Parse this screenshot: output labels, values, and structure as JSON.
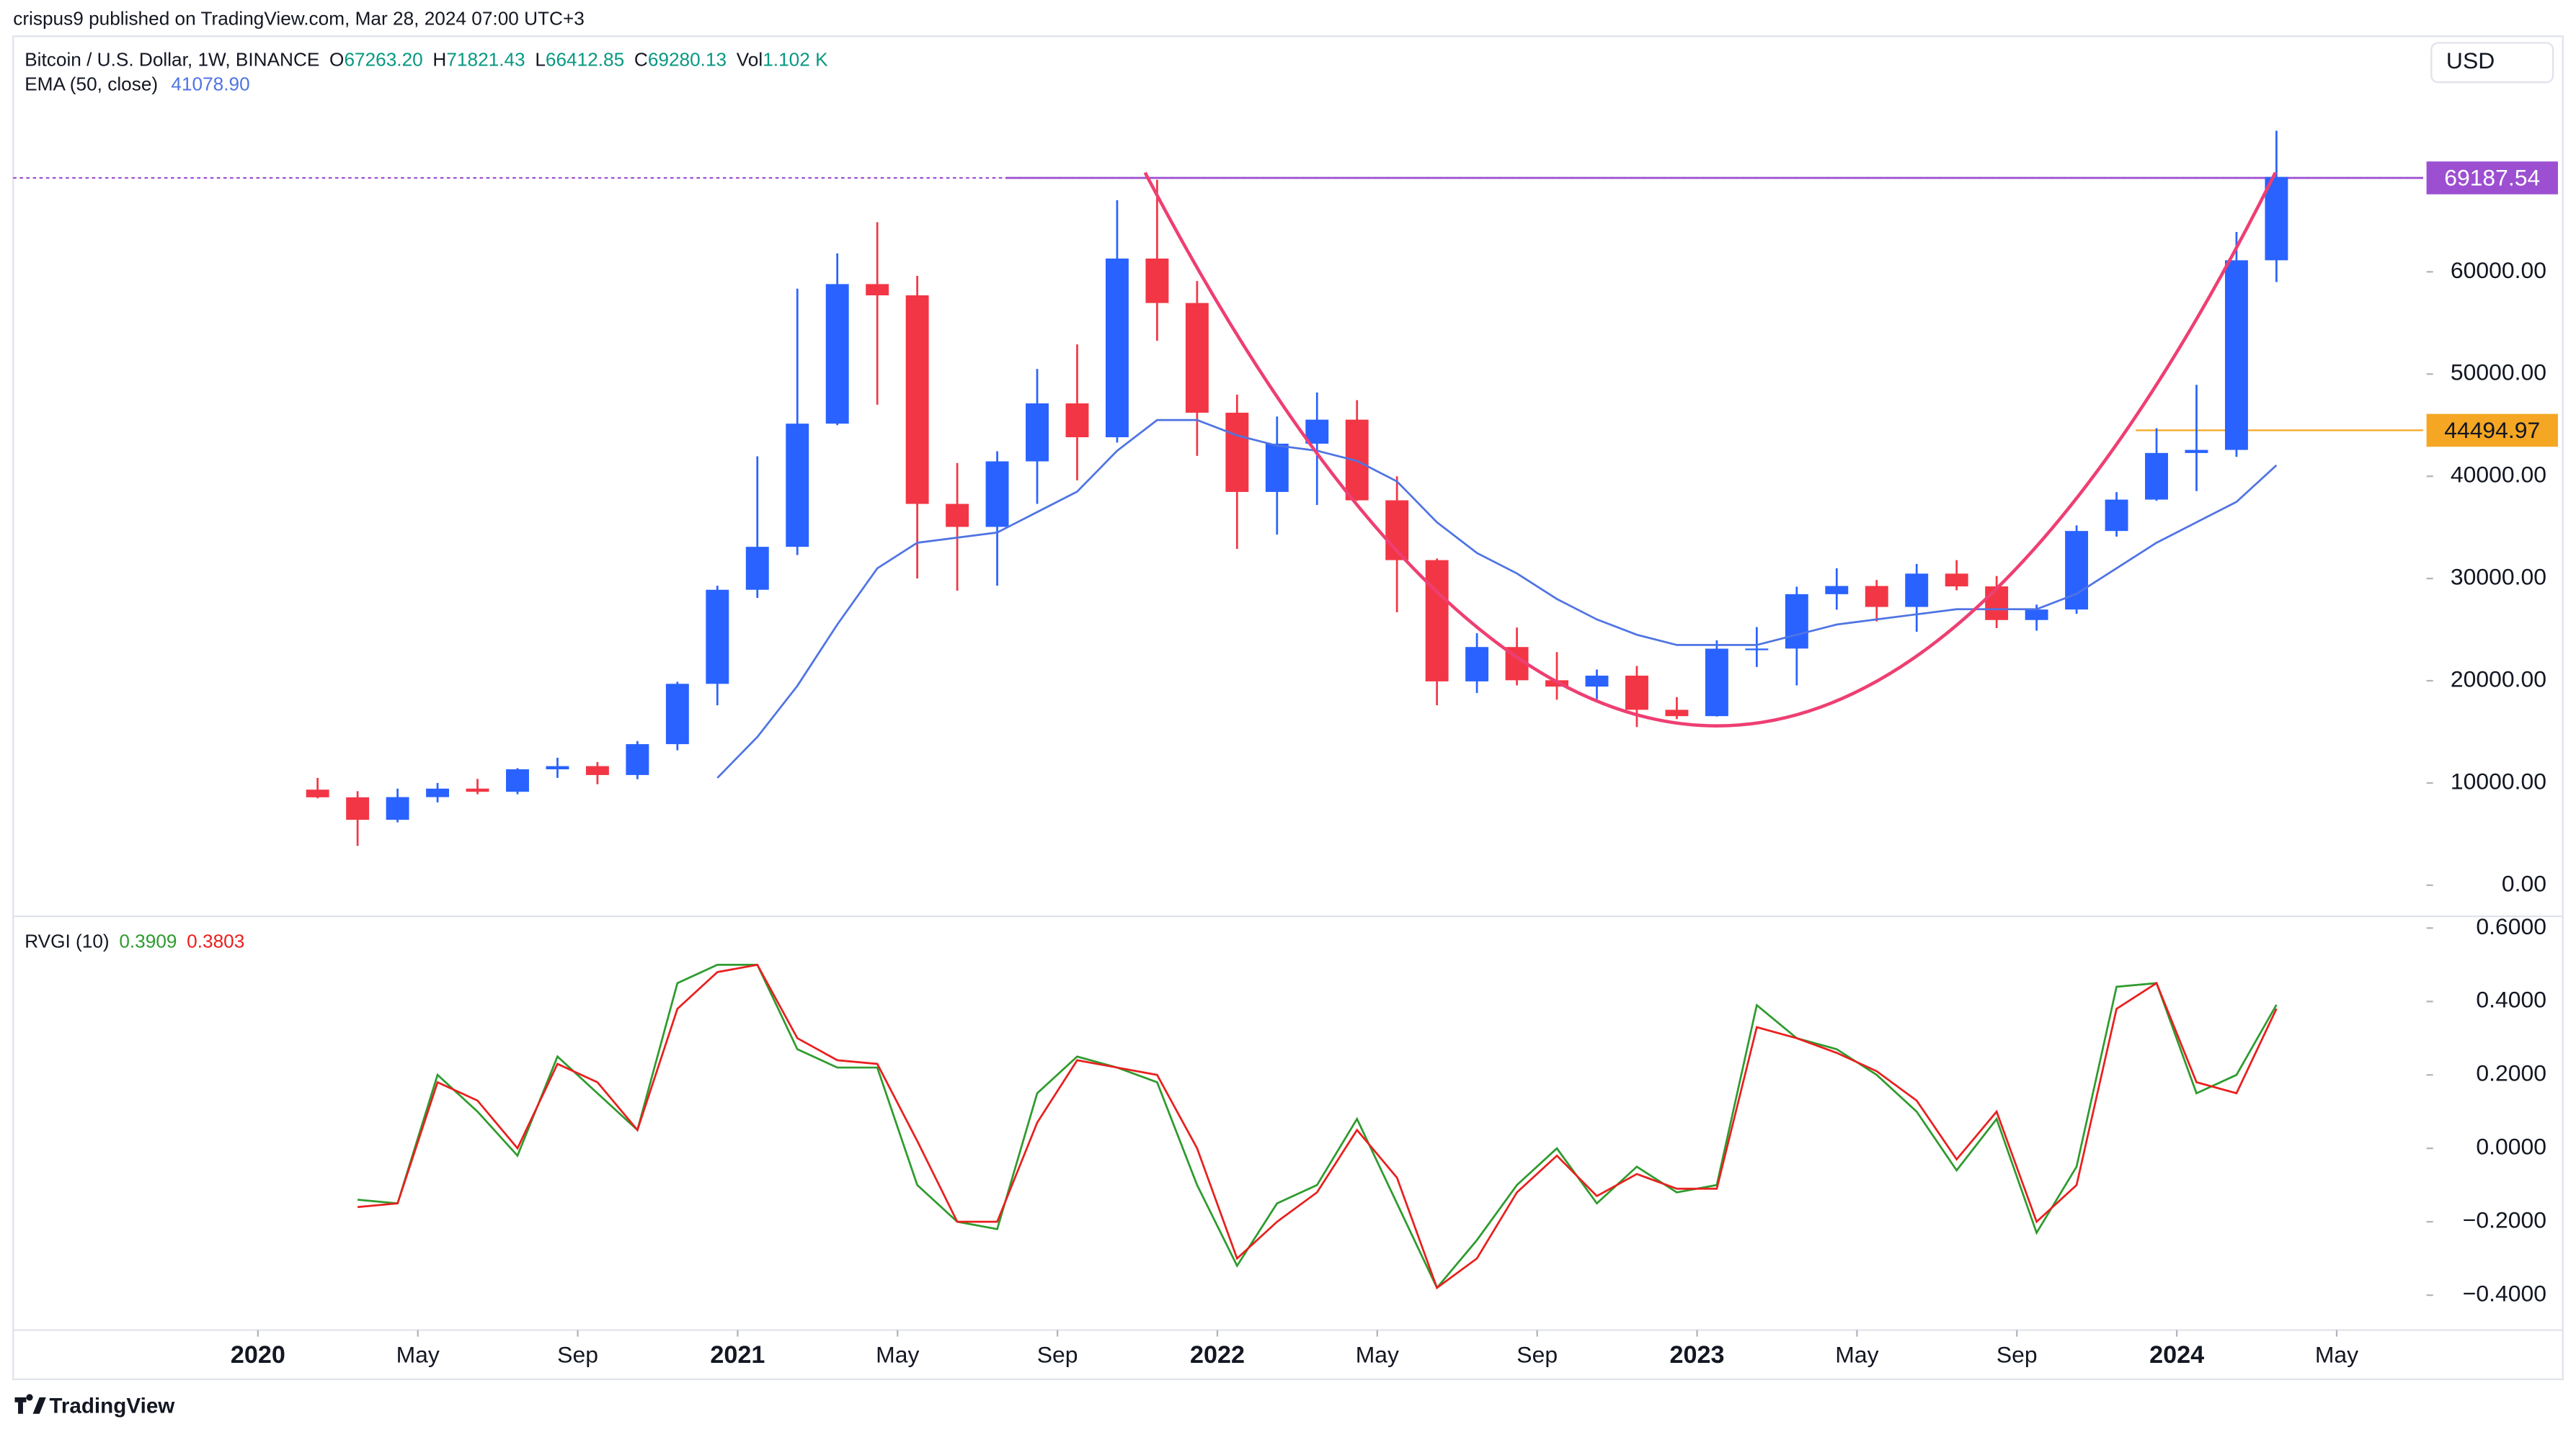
{
  "header": {
    "publisher": "crispus9 published on TradingView.com, Mar 28, 2024 07:00 UTC+3"
  },
  "footer": {
    "brand": "TradingView"
  },
  "chart_data": [
    {
      "type": "candlestick",
      "title": "Bitcoin / U.S. Dollar, 1W, BINANCE",
      "currency": "USD",
      "legend_values": [
        {
          "label": "O",
          "value": "67263.20"
        },
        {
          "label": "H",
          "value": "71821.43"
        },
        {
          "label": "L",
          "value": "66412.85"
        },
        {
          "label": "C",
          "value": "69280.13"
        },
        {
          "label": "Vol",
          "value": "1.102 K"
        }
      ],
      "up_color": "#2962ff",
      "down_color": "#f23645",
      "x": [
        "2020-02",
        "2020-03",
        "2020-04",
        "2020-05",
        "2020-06",
        "2020-07",
        "2020-08",
        "2020-09",
        "2020-10",
        "2020-11",
        "2020-12",
        "2021-01",
        "2021-02",
        "2021-03",
        "2021-04",
        "2021-05",
        "2021-06",
        "2021-07",
        "2021-08",
        "2021-09",
        "2021-10",
        "2021-11",
        "2021-12",
        "2022-01",
        "2022-02",
        "2022-03",
        "2022-04",
        "2022-05",
        "2022-06",
        "2022-07",
        "2022-08",
        "2022-09",
        "2022-10",
        "2022-11",
        "2022-12",
        "2023-01",
        "2023-02",
        "2023-03",
        "2023-04",
        "2023-05",
        "2023-06",
        "2023-07",
        "2023-08",
        "2023-09",
        "2023-10",
        "2023-11",
        "2023-12",
        "2024-01",
        "2024-02",
        "2024-03"
      ],
      "open": [
        9350,
        8600,
        6400,
        8620,
        9450,
        9140,
        11340,
        11650,
        10780,
        13800,
        19700,
        28900,
        33100,
        45150,
        58800,
        57700,
        37300,
        35050,
        41460,
        47130,
        43820,
        61300,
        56950,
        46220,
        38470,
        43190,
        45540,
        37650,
        31800,
        19940,
        23300,
        20050,
        19430,
        20500,
        17160,
        16540,
        23140,
        23150,
        28470,
        29270,
        27220,
        30480,
        29230,
        25940,
        26970,
        34650,
        37720,
        42280,
        42580,
        61130
      ],
      "high": [
        10500,
        9200,
        9450,
        10000,
        10400,
        11450,
        12470,
        12050,
        14100,
        19900,
        29300,
        41950,
        58350,
        61800,
        64850,
        59600,
        41300,
        42450,
        50500,
        52900,
        67000,
        69000,
        59100,
        47990,
        45850,
        48200,
        47450,
        40000,
        31960,
        24650,
        25200,
        22800,
        21100,
        21450,
        18400,
        23950,
        25250,
        29200,
        31000,
        29850,
        31430,
        31800,
        30250,
        27450,
        35200,
        38450,
        44700,
        48950,
        63900,
        73800
      ],
      "low": [
        8500,
        3850,
        6150,
        8100,
        8900,
        8900,
        10500,
        9880,
        10370,
        13200,
        17600,
        28100,
        32300,
        45000,
        47000,
        30000,
        28800,
        29300,
        37300,
        39600,
        43300,
        53250,
        42000,
        32900,
        34300,
        37200,
        37600,
        26700,
        17600,
        18800,
        19550,
        18150,
        18200,
        15480,
        16250,
        16500,
        21350,
        19550,
        26950,
        25800,
        24800,
        28850,
        25150,
        24900,
        26550,
        34100,
        37600,
        38550,
        41900,
        59000
      ],
      "close": [
        8600,
        6400,
        8620,
        9450,
        9140,
        11340,
        11650,
        10780,
        13800,
        19700,
        28900,
        33100,
        45150,
        58800,
        57700,
        37300,
        35050,
        41460,
        47130,
        43820,
        61300,
        56950,
        46220,
        38470,
        43190,
        45540,
        37650,
        31800,
        19940,
        23300,
        20050,
        19430,
        20500,
        17160,
        16540,
        23140,
        23150,
        28470,
        29270,
        27220,
        30480,
        29230,
        25940,
        26970,
        34650,
        37720,
        42280,
        42580,
        61130,
        69280.13
      ],
      "series": [
        {
          "name": "EMA (50, close)",
          "color": "#4f74e3",
          "legend_value": "41078.90",
          "values": [
            null,
            null,
            null,
            null,
            null,
            null,
            null,
            null,
            null,
            null,
            10500,
            14500,
            19500,
            25500,
            31000,
            33500,
            34000,
            34500,
            36500,
            38500,
            42500,
            45500,
            45500,
            44000,
            43000,
            42500,
            41500,
            39500,
            35500,
            32500,
            30500,
            28000,
            26000,
            24500,
            23500,
            23500,
            23500,
            24500,
            25500,
            26000,
            26500,
            27000,
            27000,
            27000,
            28500,
            31000,
            33500,
            35500,
            37500,
            41078.9
          ]
        }
      ],
      "hlines": [
        {
          "value": 69187.54,
          "color": "#9c4fd0"
        },
        {
          "value": 44494.97,
          "color": "#f5a623"
        }
      ],
      "ylim": [
        -3040,
        83040
      ],
      "yticks": [
        {
          "value": 0,
          "label": "0.00"
        },
        {
          "value": 10000,
          "label": "10000.00"
        },
        {
          "value": 20000,
          "label": "20000.00"
        },
        {
          "value": 30000,
          "label": "30000.00"
        },
        {
          "value": 40000,
          "label": "40000.00"
        },
        {
          "value": 50000,
          "label": "50000.00"
        },
        {
          "value": 60000,
          "label": "60000.00"
        }
      ]
    },
    {
      "type": "line",
      "title": "RVGI (10)",
      "x": [
        "2020-02",
        "2020-03",
        "2020-04",
        "2020-05",
        "2020-06",
        "2020-07",
        "2020-08",
        "2020-09",
        "2020-10",
        "2020-11",
        "2020-12",
        "2021-01",
        "2021-02",
        "2021-03",
        "2021-04",
        "2021-05",
        "2021-06",
        "2021-07",
        "2021-08",
        "2021-09",
        "2021-10",
        "2021-11",
        "2021-12",
        "2022-01",
        "2022-02",
        "2022-03",
        "2022-04",
        "2022-05",
        "2022-06",
        "2022-07",
        "2022-08",
        "2022-09",
        "2022-10",
        "2022-11",
        "2022-12",
        "2023-01",
        "2023-02",
        "2023-03",
        "2023-04",
        "2023-05",
        "2023-06",
        "2023-07",
        "2023-08",
        "2023-09",
        "2023-10",
        "2023-11",
        "2023-12",
        "2024-01",
        "2024-02",
        "2024-03"
      ],
      "series": [
        {
          "color": "#2e9b2e",
          "legend_value": "0.3909",
          "values": [
            null,
            -0.14,
            -0.15,
            0.2,
            0.1,
            -0.02,
            0.25,
            0.15,
            0.05,
            0.45,
            0.5,
            0.5,
            0.27,
            0.22,
            0.22,
            -0.1,
            -0.2,
            -0.22,
            0.15,
            0.25,
            0.22,
            0.18,
            -0.1,
            -0.32,
            -0.15,
            -0.1,
            0.08,
            -0.15,
            -0.38,
            -0.25,
            -0.1,
            0.0,
            -0.15,
            -0.05,
            -0.12,
            -0.1,
            0.39,
            0.3,
            0.27,
            0.2,
            0.1,
            -0.06,
            0.08,
            -0.23,
            -0.05,
            0.44,
            0.45,
            0.15,
            0.2,
            0.3909
          ]
        },
        {
          "color": "#e8201f",
          "legend_value": "0.3803",
          "values": [
            null,
            -0.16,
            -0.15,
            0.18,
            0.13,
            0.0,
            0.23,
            0.18,
            0.05,
            0.38,
            0.48,
            0.5,
            0.3,
            0.24,
            0.23,
            0.02,
            -0.2,
            -0.2,
            0.07,
            0.24,
            0.22,
            0.2,
            0.0,
            -0.3,
            -0.2,
            -0.12,
            0.05,
            -0.08,
            -0.38,
            -0.3,
            -0.12,
            -0.02,
            -0.13,
            -0.07,
            -0.11,
            -0.11,
            0.33,
            0.3,
            0.26,
            0.21,
            0.13,
            -0.03,
            0.1,
            -0.2,
            -0.1,
            0.38,
            0.45,
            0.18,
            0.15,
            0.3803
          ]
        }
      ],
      "ylim": [
        -0.495,
        0.632
      ],
      "yticks": [
        {
          "value": 0.6,
          "label": "0.6000"
        },
        {
          "value": 0.4,
          "label": "0.4000"
        },
        {
          "value": 0.2,
          "label": "0.2000"
        },
        {
          "value": 0,
          "label": "0.0000"
        },
        {
          "value": -0.2,
          "label": "−0.2000"
        },
        {
          "value": -0.4,
          "label": "−0.4000"
        }
      ],
      "xticks": [
        {
          "value": "2020-01",
          "label": "2020"
        },
        {
          "value": "2020-05",
          "label": "May"
        },
        {
          "value": "2020-09",
          "label": "Sep"
        },
        {
          "value": "2021-01",
          "label": "2021"
        },
        {
          "value": "2021-05",
          "label": "May"
        },
        {
          "value": "2021-09",
          "label": "Sep"
        },
        {
          "value": "2022-01",
          "label": "2022"
        },
        {
          "value": "2022-05",
          "label": "May"
        },
        {
          "value": "2022-09",
          "label": "Sep"
        },
        {
          "value": "2023-01",
          "label": "2023"
        },
        {
          "value": "2023-05",
          "label": "May"
        },
        {
          "value": "2023-09",
          "label": "Sep"
        },
        {
          "value": "2024-01",
          "label": "2024"
        },
        {
          "value": "2024-05",
          "label": "May"
        }
      ]
    }
  ]
}
